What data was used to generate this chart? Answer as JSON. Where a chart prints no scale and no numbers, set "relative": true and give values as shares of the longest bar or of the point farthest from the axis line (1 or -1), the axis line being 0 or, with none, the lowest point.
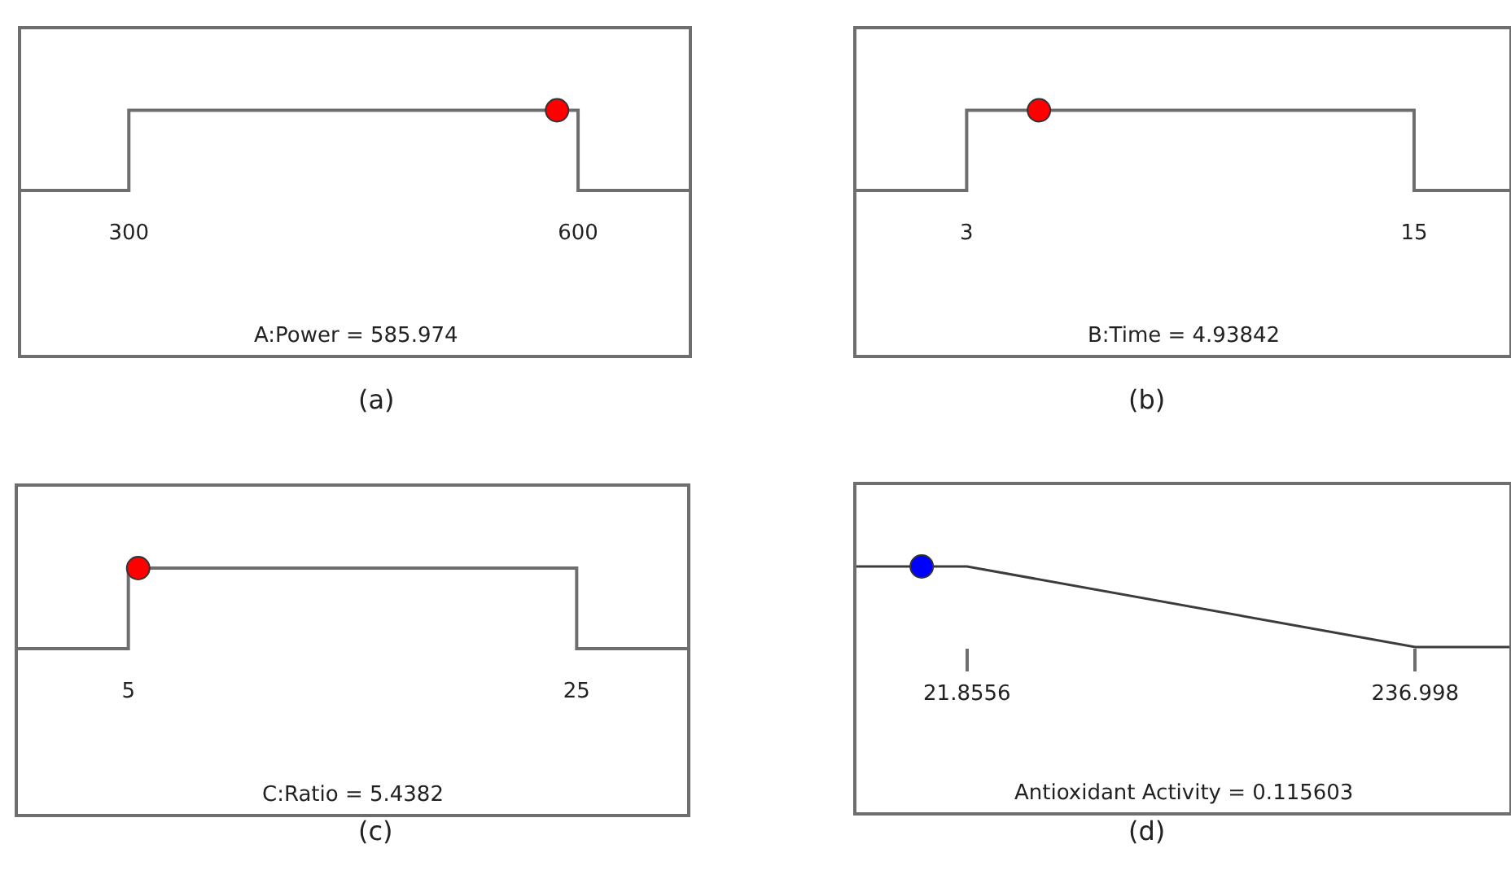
{
  "chart_data": [
    {
      "type": "line",
      "xlabel": "A:Power = 585.974",
      "annotations": [
        "(a)"
      ],
      "xlim": [
        227,
        675
      ],
      "xticks": [
        300,
        600
      ],
      "relative": true,
      "series": [
        {
          "color": "#6e6e6e",
          "x": [
            227,
            300,
            300,
            600,
            600,
            675
          ],
          "values": [
            0,
            0,
            1,
            1,
            0,
            0
          ]
        },
        {
          "type": "scatter",
          "color": "#ff0000",
          "x": [
            585.974
          ],
          "values": [
            1
          ]
        }
      ]
    },
    {
      "type": "line",
      "xlabel": "B:Time = 4.93842",
      "annotations": [
        "(b)"
      ],
      "xlim": [
        0,
        17.6
      ],
      "xticks": [
        3,
        15
      ],
      "relative": true,
      "series": [
        {
          "color": "#6e6e6e",
          "x": [
            0,
            3,
            3,
            15,
            15,
            17.6
          ],
          "values": [
            0,
            0,
            1,
            1,
            0,
            0
          ]
        },
        {
          "type": "scatter",
          "color": "#ff0000",
          "x": [
            4.93842
          ],
          "values": [
            1
          ]
        }
      ]
    },
    {
      "type": "line",
      "xlabel": "C:Ratio = 5.4382",
      "annotations": [
        "(c)"
      ],
      "xlim": [
        0,
        30
      ],
      "xticks": [
        5,
        25
      ],
      "relative": true,
      "series": [
        {
          "color": "#6e6e6e",
          "x": [
            0,
            5,
            5,
            25,
            25,
            30
          ],
          "values": [
            0,
            0,
            1,
            1,
            0,
            0
          ]
        },
        {
          "type": "scatter",
          "color": "#ff0000",
          "x": [
            5.4382
          ],
          "values": [
            1
          ]
        }
      ]
    },
    {
      "type": "line",
      "xlabel": "Antioxidant Activity = 0.115603",
      "annotations": [
        "(d)"
      ],
      "xlim": [
        -32,
        283
      ],
      "xticks": [
        21.8556,
        236.998
      ],
      "relative": true,
      "series": [
        {
          "color": "#3c3c3c",
          "x": [
            -32,
            21.8556,
            236.998,
            283
          ],
          "values": [
            1,
            1,
            0,
            0
          ]
        },
        {
          "type": "scatter",
          "color": "#0000ff",
          "x": [
            0.115603
          ],
          "values": [
            1
          ]
        }
      ]
    }
  ]
}
